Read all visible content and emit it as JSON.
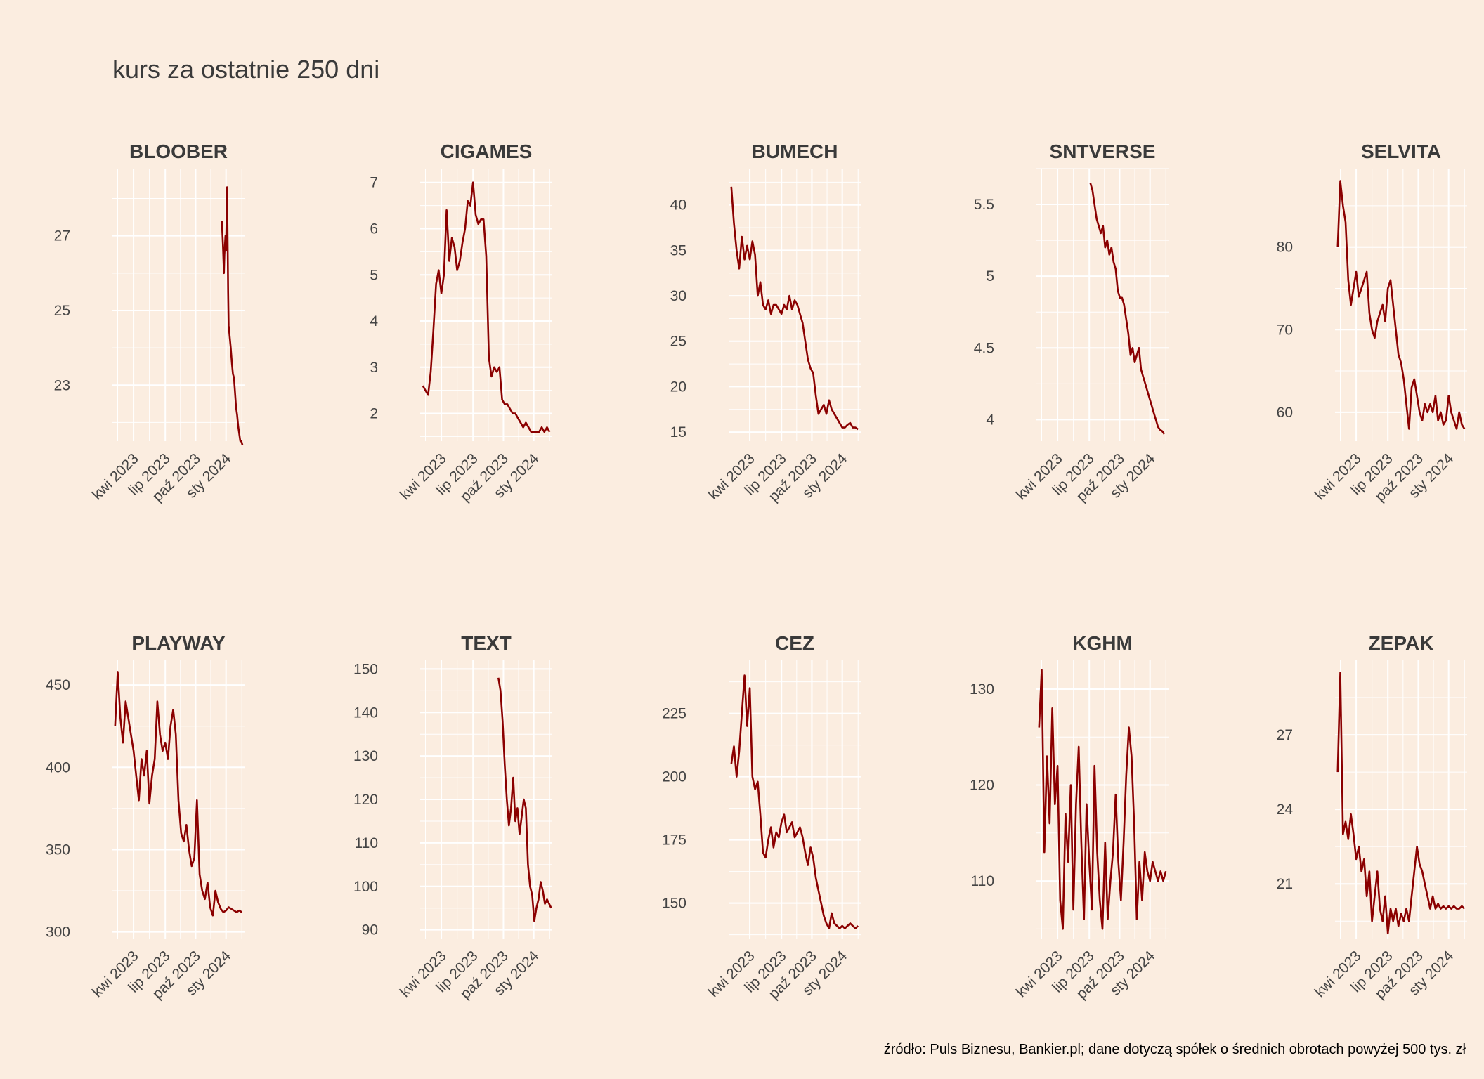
{
  "title": "kurs za ostatnie 250 dni",
  "source_note": "źródło: Puls Biznesu, Bankier.pl; dane dotyczą spółek o średnich obrotach powyżej 500 tys. zł",
  "colors": {
    "background": "#FBEDE0",
    "grid": "#FFFFFF",
    "line": "#8B0000"
  },
  "chart_data": [
    {
      "type": "line",
      "title": "BLOOBER",
      "x_ticks": [
        "kwi 2023",
        "lip 2023",
        "paź 2023",
        "sty 2024"
      ],
      "y_ticks": [
        23,
        25,
        27
      ],
      "ylim": [
        21.5,
        28.8
      ],
      "x_range": [
        0,
        250
      ],
      "series": [
        {
          "x": [
            207,
            209,
            211,
            212,
            214,
            215,
            217,
            219,
            220,
            222,
            224,
            226,
            228,
            230,
            232,
            234,
            236,
            238,
            240,
            242,
            244,
            246
          ],
          "values": [
            27.4,
            26.8,
            26.0,
            26.5,
            27.0,
            26.6,
            28.3,
            25.5,
            24.6,
            24.3,
            24.0,
            23.6,
            23.3,
            23.2,
            22.8,
            22.4,
            22.2,
            21.9,
            21.7,
            21.5,
            21.5,
            21.4
          ]
        }
      ]
    },
    {
      "type": "line",
      "title": "CIGAMES",
      "x_ticks": [
        "kwi 2023",
        "lip 2023",
        "paź 2023",
        "sty 2024"
      ],
      "y_ticks": [
        2,
        3,
        4,
        5,
        6,
        7
      ],
      "ylim": [
        1.4,
        7.3
      ],
      "x_range": [
        0,
        250
      ],
      "series": [
        {
          "x": [
            5,
            10,
            15,
            20,
            25,
            30,
            35,
            40,
            45,
            50,
            55,
            60,
            65,
            70,
            75,
            80,
            85,
            90,
            95,
            100,
            105,
            110,
            115,
            120,
            125,
            130,
            135,
            140,
            145,
            150,
            155,
            160,
            165,
            170,
            175,
            180,
            185,
            190,
            195,
            200,
            205,
            210,
            215,
            220,
            225,
            230,
            235,
            240,
            245
          ],
          "values": [
            2.6,
            2.5,
            2.4,
            2.9,
            3.8,
            4.8,
            5.1,
            4.6,
            5.0,
            6.4,
            5.3,
            5.8,
            5.6,
            5.1,
            5.3,
            5.7,
            6.0,
            6.6,
            6.5,
            7.0,
            6.3,
            6.1,
            6.2,
            6.2,
            5.4,
            3.2,
            2.8,
            3.0,
            2.9,
            3.0,
            2.3,
            2.2,
            2.2,
            2.1,
            2.0,
            2.0,
            1.9,
            1.8,
            1.7,
            1.8,
            1.7,
            1.6,
            1.6,
            1.6,
            1.6,
            1.7,
            1.6,
            1.7,
            1.6
          ]
        }
      ]
    },
    {
      "type": "line",
      "title": "BUMECH",
      "x_ticks": [
        "kwi 2023",
        "lip 2023",
        "paź 2023",
        "sty 2024"
      ],
      "y_ticks": [
        15,
        20,
        25,
        30,
        35,
        40
      ],
      "ylim": [
        14,
        44
      ],
      "x_range": [
        0,
        250
      ],
      "series": [
        {
          "x": [
            5,
            10,
            15,
            20,
            25,
            30,
            35,
            40,
            45,
            50,
            55,
            60,
            65,
            70,
            75,
            80,
            85,
            90,
            95,
            100,
            105,
            110,
            115,
            120,
            125,
            130,
            135,
            140,
            145,
            150,
            155,
            160,
            165,
            170,
            175,
            180,
            185,
            190,
            195,
            200,
            205,
            210,
            215,
            220,
            225,
            230,
            235,
            240,
            245
          ],
          "values": [
            42.0,
            38.0,
            35.0,
            33.0,
            36.5,
            34.0,
            35.5,
            34.0,
            36.0,
            34.5,
            30.0,
            31.5,
            29.0,
            28.5,
            29.5,
            28.0,
            29.0,
            29.0,
            28.5,
            28.0,
            29.0,
            28.5,
            30.0,
            28.5,
            29.5,
            29.0,
            28.0,
            27.0,
            25.0,
            23.0,
            22.0,
            21.5,
            19.0,
            17.0,
            17.5,
            18.0,
            17.0,
            18.5,
            17.5,
            17.0,
            16.5,
            16.0,
            15.5,
            15.5,
            15.8,
            16.0,
            15.5,
            15.5,
            15.3
          ]
        }
      ]
    },
    {
      "type": "line",
      "title": "SNTVERSE",
      "x_ticks": [
        "kwi 2023",
        "lip 2023",
        "paź 2023",
        "sty 2024"
      ],
      "y_ticks": [
        4.0,
        4.5,
        5.0,
        5.5
      ],
      "ylim": [
        3.85,
        5.75
      ],
      "x_range": [
        0,
        250
      ],
      "series": [
        {
          "x": [
            102,
            106,
            110,
            114,
            118,
            122,
            126,
            130,
            134,
            138,
            142,
            146,
            150,
            154,
            158,
            162,
            166,
            170,
            174,
            178,
            182,
            186,
            190,
            194,
            198,
            202,
            206,
            210,
            214,
            218,
            222,
            226,
            230,
            234,
            238,
            242
          ],
          "values": [
            5.65,
            5.6,
            5.5,
            5.4,
            5.35,
            5.3,
            5.35,
            5.2,
            5.25,
            5.15,
            5.2,
            5.1,
            5.05,
            4.9,
            4.85,
            4.85,
            4.8,
            4.7,
            4.6,
            4.45,
            4.5,
            4.4,
            4.45,
            4.5,
            4.35,
            4.3,
            4.25,
            4.2,
            4.15,
            4.1,
            4.05,
            4.0,
            3.95,
            3.93,
            3.92,
            3.9
          ]
        }
      ]
    },
    {
      "type": "line",
      "title": "SELVITA",
      "x_ticks": [
        "kwi 2023",
        "lip 2023",
        "paź 2023",
        "sty 2024"
      ],
      "y_ticks": [
        60,
        70,
        80
      ],
      "ylim": [
        56.5,
        89.5
      ],
      "x_range": [
        0,
        250
      ],
      "series": [
        {
          "x": [
            5,
            10,
            15,
            20,
            25,
            30,
            35,
            40,
            45,
            50,
            55,
            60,
            65,
            70,
            75,
            80,
            85,
            90,
            95,
            100,
            105,
            110,
            115,
            120,
            125,
            130,
            135,
            140,
            145,
            150,
            155,
            160,
            165,
            170,
            175,
            180,
            185,
            190,
            195,
            200,
            205,
            210,
            215,
            220,
            225,
            230,
            235,
            240,
            245
          ],
          "values": [
            80.0,
            88.0,
            85.0,
            83.0,
            76.0,
            73.0,
            75.0,
            77.0,
            74.0,
            75.0,
            76.0,
            77.0,
            72.0,
            70.0,
            69.0,
            71.0,
            72.0,
            73.0,
            71.0,
            75.0,
            76.0,
            73.0,
            70.0,
            67.0,
            66.0,
            64.0,
            61.0,
            58.0,
            63.0,
            64.0,
            62.0,
            60.0,
            59.0,
            61.0,
            60.0,
            61.0,
            60.0,
            62.0,
            59.0,
            60.0,
            58.5,
            59.0,
            62.0,
            60.0,
            59.0,
            58.0,
            60.0,
            58.5,
            58.0
          ]
        }
      ]
    },
    {
      "type": "line",
      "title": "PLAYWAY",
      "x_ticks": [
        "kwi 2023",
        "lip 2023",
        "paź 2023",
        "sty 2024"
      ],
      "y_ticks": [
        300,
        350,
        400,
        450
      ],
      "ylim": [
        296,
        465
      ],
      "x_range": [
        0,
        250
      ],
      "series": [
        {
          "x": [
            5,
            10,
            15,
            20,
            25,
            30,
            35,
            40,
            45,
            50,
            55,
            60,
            65,
            70,
            75,
            80,
            85,
            90,
            95,
            100,
            105,
            110,
            115,
            120,
            125,
            130,
            135,
            140,
            145,
            150,
            155,
            160,
            165,
            170,
            175,
            180,
            185,
            190,
            195,
            200,
            205,
            210,
            215,
            220,
            225,
            230,
            235,
            240,
            245
          ],
          "values": [
            425.0,
            458.0,
            430.0,
            415.0,
            440.0,
            430.0,
            420.0,
            410.0,
            395.0,
            380.0,
            405.0,
            395.0,
            410.0,
            378.0,
            395.0,
            405.0,
            440.0,
            420.0,
            410.0,
            415.0,
            405.0,
            425.0,
            435.0,
            420.0,
            380.0,
            360.0,
            355.0,
            365.0,
            350.0,
            340.0,
            345.0,
            380.0,
            335.0,
            325.0,
            320.0,
            330.0,
            315.0,
            310.0,
            325.0,
            318.0,
            314.0,
            312.0,
            313.0,
            315.0,
            314.0,
            313.0,
            312.0,
            313.0,
            312.0
          ]
        }
      ]
    },
    {
      "type": "line",
      "title": "TEXT",
      "x_ticks": [
        "kwi 2023",
        "lip 2023",
        "paź 2023",
        "sty 2024"
      ],
      "y_ticks": [
        90,
        100,
        110,
        120,
        130,
        140,
        150
      ],
      "ylim": [
        88,
        152
      ],
      "x_range": [
        0,
        250
      ],
      "series": [
        {
          "x": [
            148,
            152,
            156,
            160,
            164,
            168,
            172,
            176,
            180,
            184,
            188,
            192,
            196,
            200,
            204,
            208,
            212,
            216,
            220,
            224,
            228,
            232,
            236,
            240,
            244,
            248
          ],
          "values": [
            148.0,
            145.0,
            138.0,
            128.0,
            120.0,
            114.0,
            118.0,
            125.0,
            115.0,
            118.0,
            112.0,
            116.0,
            120.0,
            118.0,
            105.0,
            100.0,
            98.0,
            92.0,
            95.0,
            97.0,
            101.0,
            99.0,
            96.0,
            97.0,
            96.0,
            95.0
          ]
        }
      ]
    },
    {
      "type": "line",
      "title": "CEZ",
      "x_ticks": [
        "kwi 2023",
        "lip 2023",
        "paź 2023",
        "sty 2024"
      ],
      "y_ticks": [
        150,
        175,
        200,
        225
      ],
      "ylim": [
        136,
        246
      ],
      "x_range": [
        0,
        250
      ],
      "series": [
        {
          "x": [
            5,
            10,
            15,
            20,
            25,
            30,
            35,
            40,
            45,
            50,
            55,
            60,
            65,
            70,
            75,
            80,
            85,
            90,
            95,
            100,
            105,
            110,
            115,
            120,
            125,
            130,
            135,
            140,
            145,
            150,
            155,
            160,
            165,
            170,
            175,
            180,
            185,
            190,
            195,
            200,
            205,
            210,
            215,
            220,
            225,
            230,
            235,
            240,
            245
          ],
          "values": [
            205.0,
            212.0,
            200.0,
            210.0,
            225.0,
            240.0,
            220.0,
            235.0,
            200.0,
            195.0,
            198.0,
            185.0,
            170.0,
            168.0,
            175.0,
            180.0,
            172.0,
            178.0,
            176.0,
            182.0,
            185.0,
            178.0,
            180.0,
            182.0,
            176.0,
            178.0,
            180.0,
            176.0,
            170.0,
            165.0,
            172.0,
            168.0,
            160.0,
            155.0,
            150.0,
            145.0,
            142.0,
            140.0,
            146.0,
            142.0,
            141.0,
            140.0,
            141.0,
            140.0,
            141.0,
            142.0,
            141.0,
            140.0,
            141.0
          ]
        }
      ]
    },
    {
      "type": "line",
      "title": "KGHM",
      "x_ticks": [
        "kwi 2023",
        "lip 2023",
        "paź 2023",
        "sty 2024"
      ],
      "y_ticks": [
        110,
        120,
        130
      ],
      "ylim": [
        104,
        133
      ],
      "x_range": [
        0,
        250
      ],
      "series": [
        {
          "x": [
            5,
            10,
            15,
            20,
            25,
            30,
            35,
            40,
            45,
            50,
            55,
            60,
            65,
            70,
            75,
            80,
            85,
            90,
            95,
            100,
            105,
            110,
            115,
            120,
            125,
            130,
            135,
            140,
            145,
            150,
            155,
            160,
            165,
            170,
            175,
            180,
            185,
            190,
            195,
            200,
            205,
            210,
            215,
            220,
            225,
            230,
            235,
            240,
            245
          ],
          "values": [
            126.0,
            132.0,
            113.0,
            123.0,
            116.0,
            128.0,
            118.0,
            122.0,
            108.0,
            105.0,
            117.0,
            112.0,
            120.0,
            107.0,
            118.0,
            124.0,
            114.0,
            106.0,
            118.0,
            112.0,
            107.0,
            122.0,
            113.0,
            108.0,
            105.0,
            114.0,
            106.0,
            110.0,
            113.0,
            119.0,
            112.0,
            108.0,
            114.0,
            121.0,
            126.0,
            123.0,
            116.0,
            106.0,
            112.0,
            108.0,
            113.0,
            111.0,
            110.0,
            112.0,
            111.0,
            110.0,
            111.0,
            110.0,
            111.0
          ]
        }
      ]
    },
    {
      "type": "line",
      "title": "ZEPAK",
      "x_ticks": [
        "kwi 2023",
        "lip 2023",
        "paź 2023",
        "sty 2024"
      ],
      "y_ticks": [
        21,
        24,
        27
      ],
      "ylim": [
        18.8,
        30.0
      ],
      "x_range": [
        0,
        250
      ],
      "series": [
        {
          "x": [
            5,
            10,
            15,
            20,
            25,
            30,
            35,
            40,
            45,
            50,
            55,
            60,
            65,
            70,
            75,
            80,
            85,
            90,
            95,
            100,
            105,
            110,
            115,
            120,
            125,
            130,
            135,
            140,
            145,
            150,
            155,
            160,
            165,
            170,
            175,
            180,
            185,
            190,
            195,
            200,
            205,
            210,
            215,
            220,
            225,
            230,
            235,
            240,
            245
          ],
          "values": [
            25.5,
            29.5,
            23.0,
            23.5,
            22.8,
            23.8,
            23.0,
            22.0,
            22.5,
            21.5,
            22.0,
            20.5,
            21.5,
            19.5,
            20.5,
            21.5,
            20.0,
            19.5,
            20.5,
            19.0,
            20.0,
            19.5,
            20.0,
            19.3,
            19.8,
            19.5,
            20.0,
            19.5,
            20.5,
            21.5,
            22.5,
            21.8,
            21.5,
            21.0,
            20.5,
            20.0,
            20.5,
            20.0,
            20.2,
            20.0,
            20.1,
            20.0,
            20.1,
            20.0,
            20.1,
            20.0,
            20.0,
            20.1,
            20.0
          ]
        }
      ]
    }
  ]
}
